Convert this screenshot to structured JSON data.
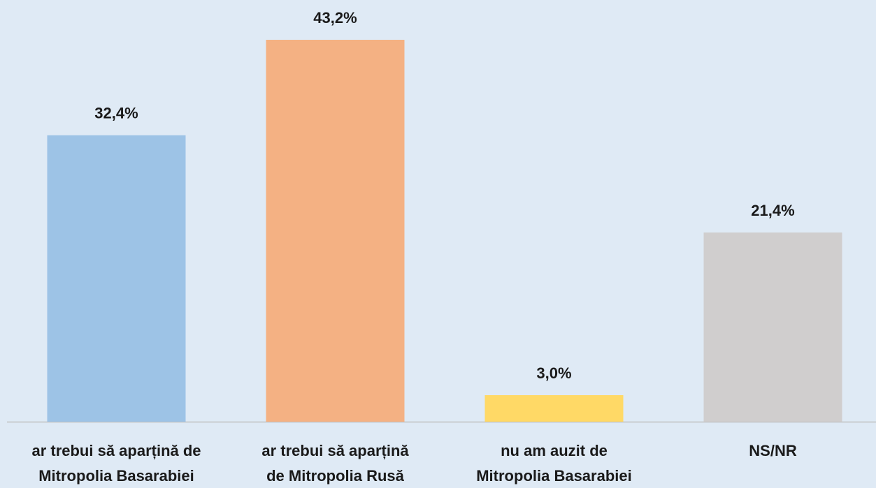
{
  "chart_data": {
    "type": "bar",
    "categories": [
      [
        "ar trebui să aparțină de",
        "Mitropolia Basarabiei"
      ],
      [
        "ar trebui să aparțină",
        "de Mitropolia Rusă"
      ],
      [
        "nu am auzit de",
        "Mitropolia Basarabiei"
      ],
      [
        "NS/NR"
      ]
    ],
    "values": [
      32.4,
      43.2,
      3.0,
      21.4
    ],
    "value_labels": [
      "32,4%",
      "43,2%",
      "3,0%",
      "21,4%"
    ],
    "colors": [
      "#9dc3e6",
      "#f4b183",
      "#ffd966",
      "#d0cece"
    ]
  }
}
